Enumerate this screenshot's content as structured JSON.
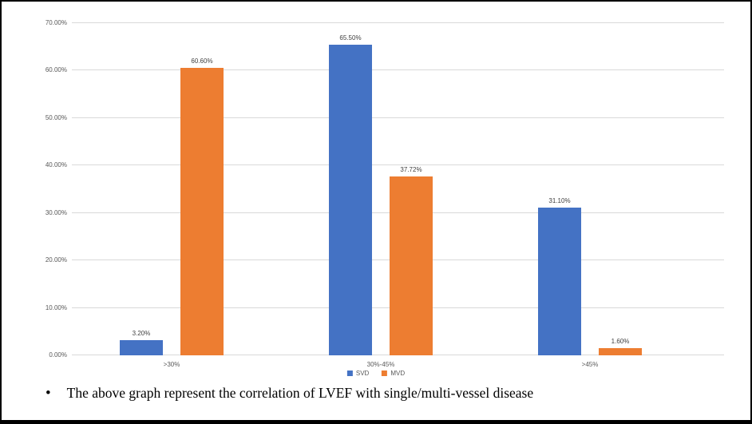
{
  "chart_data": {
    "type": "bar",
    "title": "",
    "categories": [
      ">30%",
      "30%-45%",
      ">45%"
    ],
    "series": [
      {
        "name": "SVD",
        "color": "#4472C4",
        "values": [
          3.2,
          65.5,
          31.1
        ],
        "data_labels": [
          "3.20%",
          "65.50%",
          "31.10%"
        ]
      },
      {
        "name": "MVD",
        "color": "#ED7D31",
        "values": [
          60.6,
          37.72,
          1.6
        ],
        "data_labels": [
          "60.60%",
          "37.72%",
          "1.60%"
        ]
      }
    ],
    "ylim": [
      0,
      70
    ],
    "y_step": 10,
    "y_tick_labels": [
      "0.00%",
      "10.00%",
      "20.00%",
      "30.00%",
      "40.00%",
      "50.00%",
      "60.00%",
      "70.00%"
    ],
    "xlabel": "",
    "ylabel": "",
    "grid": true,
    "legend_position": "bottom",
    "gridline_color": "#d9d9d9"
  },
  "caption": {
    "bullet": "•",
    "text": "The above graph represent the correlation of LVEF with single/multi-vessel disease"
  }
}
